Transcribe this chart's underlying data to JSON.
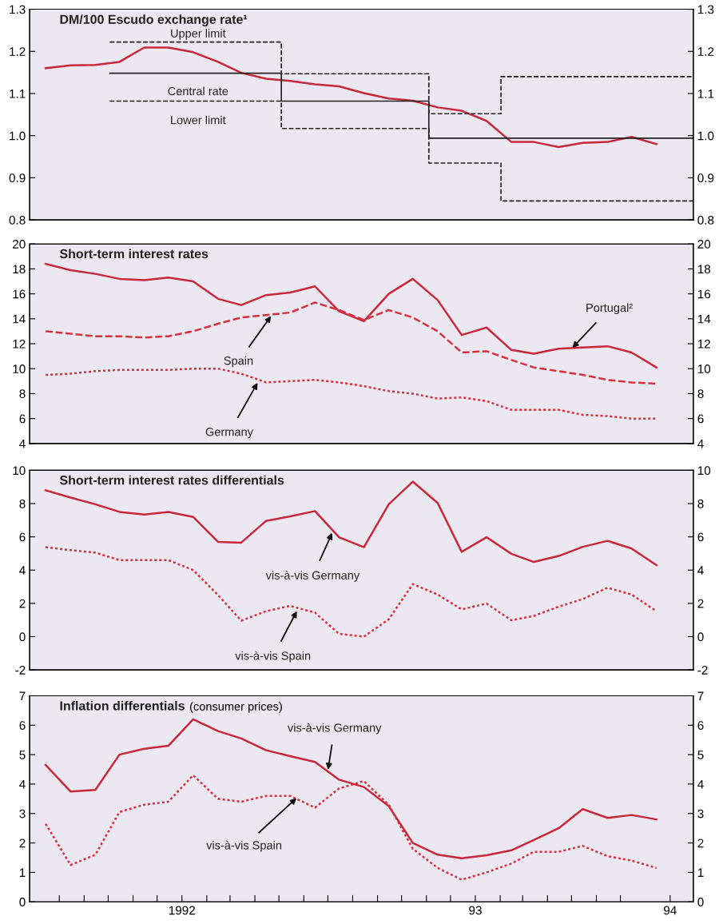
{
  "chart_data": [
    {
      "type": "line",
      "title": "DM/100 Escudo exchange rate¹",
      "xlim": [
        "1991-06-25",
        "1993-09-30"
      ],
      "ylim": [
        0.8,
        1.3
      ],
      "yticks": [
        0.8,
        0.9,
        {
          "value": 1,
          "label": "1.0"
        },
        1.1,
        1.2,
        1.3
      ],
      "y2lim": [
        0.8,
        1.3
      ],
      "y2ticks": [
        0.8,
        0.9,
        {
          "value": 1,
          "label": "1.0"
        },
        1.1,
        1.2,
        1.3
      ],
      "tick_labels": "y",
      "x": [
        "1991-07-15",
        "1991-08-15",
        "1991-09-15",
        "1991-10-15",
        "1991-11-15",
        "1991-12-15",
        "1992-01-15",
        "1992-02-15",
        "1992-03-15",
        "1992-04-15",
        "1992-05-15",
        "1992-06-15",
        "1992-07-15",
        "1992-08-15",
        "1992-09-15",
        "1992-10-15",
        "1992-11-15",
        "1992-12-15",
        "1993-01-15",
        "1993-02-15",
        "1993-03-15",
        "1993-04-15",
        "1993-05-15",
        "1993-06-15",
        "1993-07-15",
        "1993-08-15"
      ],
      "series": [
        {
          "type": "line",
          "color": "#c8283a",
          "line_style": "solid",
          "values": [
            1.16,
            1.167,
            1.168,
            1.175,
            1.209,
            1.209,
            1.198,
            1.175,
            1.149,
            1.135,
            1.13,
            1.122,
            1.117,
            1.101,
            1.088,
            1.083,
            1.067,
            1.059,
            1.035,
            0.985,
            0.985,
            0.973,
            0.983,
            0.985,
            0.997,
            0.98
          ]
        },
        {
          "type": "step",
          "color": "#222222",
          "line_style": "dashed",
          "x": [
            "1991-10-03",
            "1992-05-04",
            "1992-11-04",
            "1993-02-02",
            "1993-09-30"
          ],
          "values": [
            1.222,
            1.147,
            1.052,
            1.14,
            1.14
          ]
        },
        {
          "type": "step",
          "color": "#222222",
          "line_style": "solid",
          "x": [
            "1991-10-03",
            "1992-05-04",
            "1992-11-04",
            "1993-09-30"
          ],
          "values": [
            1.148,
            1.082,
            0.994,
            0.994
          ]
        },
        {
          "type": "step",
          "color": "#222222",
          "line_style": "dashed",
          "x": [
            "1991-10-03",
            "1992-05-04",
            "1992-11-04",
            "1993-02-02",
            "1993-09-30"
          ],
          "values": [
            1.082,
            1.017,
            0.935,
            0.845,
            0.845
          ]
        }
      ],
      "annotations": [
        {
          "text": "Upper limit",
          "x": "1992-01-21",
          "y": 1.222
        },
        {
          "text": "Central rate",
          "x": "1992-01-21",
          "y": 1.148
        },
        {
          "text": "Lower limit",
          "x": "1992-01-21",
          "y": 1.082
        }
      ]
    },
    {
      "type": "line",
      "title": "Short-term interest rates",
      "xlim": [
        "1991-06-25",
        "1993-09-30"
      ],
      "ylim": [
        4,
        20
      ],
      "yticks": [
        4,
        6,
        8,
        10,
        12,
        14,
        16,
        18,
        20
      ],
      "y2lim": [
        4,
        20
      ],
      "y2ticks": [
        4,
        6,
        8,
        10,
        12,
        14,
        16,
        18,
        20
      ],
      "tick_labels": "y",
      "x": [
        "1991-07-15",
        "1991-08-15",
        "1991-09-15",
        "1991-10-15",
        "1991-11-15",
        "1991-12-15",
        "1992-01-15",
        "1992-02-15",
        "1992-03-15",
        "1992-04-15",
        "1992-05-15",
        "1992-06-15",
        "1992-07-15",
        "1992-08-15",
        "1992-09-15",
        "1992-10-15",
        "1992-11-15",
        "1992-12-15",
        "1993-01-15",
        "1993-02-15",
        "1993-03-15",
        "1993-04-15",
        "1993-05-15",
        "1993-06-15",
        "1993-07-15",
        "1993-08-15"
      ],
      "series": [
        {
          "type": "line",
          "color": "#c8283a",
          "line_style": "solid",
          "values": [
            18.4,
            17.9,
            17.6,
            17.2,
            17.1,
            17.3,
            17.0,
            15.6,
            15.1,
            15.9,
            16.1,
            16.6,
            14.6,
            13.8,
            16.0,
            17.2,
            15.5,
            12.7,
            13.3,
            11.5,
            11.2,
            11.6,
            11.7,
            11.8,
            11.3,
            10.1
          ]
        },
        {
          "type": "line",
          "color": "#d8303e",
          "line_style": "dashed",
          "values": [
            13.0,
            12.8,
            12.6,
            12.6,
            12.5,
            12.6,
            13.0,
            13.6,
            14.1,
            14.3,
            14.5,
            15.3,
            14.7,
            13.9,
            14.7,
            14.1,
            13.0,
            11.3,
            11.4,
            10.7,
            10.1,
            9.8,
            9.5,
            9.1,
            8.9,
            8.8
          ]
        },
        {
          "type": "line",
          "color": "#d8303e",
          "line_style": "dotted",
          "values": [
            9.5,
            9.6,
            9.8,
            9.9,
            9.9,
            9.9,
            10.0,
            10.0,
            9.6,
            8.9,
            9.0,
            9.1,
            8.9,
            8.6,
            8.2,
            8.0,
            7.6,
            7.7,
            7.4,
            6.7,
            6.7,
            6.7,
            6.3,
            6.2,
            6.0,
            6.0
          ]
        }
      ],
      "annotations": [
        {
          "text": "Spain",
          "x": "1992-04-22",
          "y": 14.3
        },
        {
          "text": "Germany",
          "x": "1992-04-05",
          "y": 8.95
        },
        {
          "text": "Portugal²",
          "x": "1993-05-01",
          "y": 11.6
        }
      ]
    },
    {
      "type": "line",
      "title": "Short-term interest rates differentials",
      "xlim": [
        "1991-06-25",
        "1993-09-30"
      ],
      "ylim": [
        -2,
        10
      ],
      "yticks": [
        {
          "value": -2,
          "label": "-2"
        },
        0,
        2,
        4,
        6,
        8,
        10
      ],
      "y2lim": [
        -2,
        10
      ],
      "y2ticks": [
        {
          "value": -2,
          "label": "-2"
        },
        0,
        2,
        4,
        6,
        8,
        10
      ],
      "tick_labels": "y",
      "x": [
        "1991-07-15",
        "1991-08-15",
        "1991-09-15",
        "1991-10-15",
        "1991-11-15",
        "1991-12-15",
        "1992-01-15",
        "1992-02-15",
        "1992-03-15",
        "1992-04-15",
        "1992-05-15",
        "1992-06-15",
        "1992-07-15",
        "1992-08-15",
        "1992-09-15",
        "1992-10-15",
        "1992-11-15",
        "1992-12-15",
        "1993-01-15",
        "1993-02-15",
        "1993-03-15",
        "1993-04-15",
        "1993-05-15",
        "1993-06-15",
        "1993-07-15",
        "1993-08-15"
      ],
      "series": [
        {
          "type": "line",
          "color": "#c8283a",
          "line_style": "solid",
          "values": [
            8.8,
            8.36,
            7.96,
            7.5,
            7.34,
            7.5,
            7.2,
            5.7,
            5.65,
            6.96,
            7.23,
            7.55,
            5.98,
            5.38,
            7.96,
            9.32,
            8.04,
            5.1,
            5.98,
            4.98,
            4.49,
            4.85,
            5.4,
            5.76,
            5.3,
            4.3
          ]
        },
        {
          "type": "line",
          "color": "#d8303e",
          "line_style": "dotted",
          "values": [
            5.38,
            5.2,
            5.05,
            4.6,
            4.6,
            4.6,
            4.0,
            2.5,
            0.96,
            1.53,
            1.85,
            1.44,
            0.17,
            0.0,
            1.04,
            3.16,
            2.53,
            1.64,
            1.99,
            0.98,
            1.25,
            1.8,
            2.26,
            2.94,
            2.53,
            1.53
          ]
        }
      ],
      "annotations": [
        {
          "text": "vis-à-vis Germany",
          "x": "1992-07-07",
          "y": 6.3
        },
        {
          "text": "vis-à-vis Spain",
          "x": "1992-05-24",
          "y": 1.6
        }
      ]
    },
    {
      "type": "line",
      "title": "Inflation differentials",
      "subtitle": "(consumer prices)",
      "xlim": [
        "1991-06-25",
        "1993-09-30"
      ],
      "ylim": [
        0,
        7
      ],
      "yticks": [
        0,
        1,
        2,
        3,
        4,
        5,
        6,
        7
      ],
      "y2lim": [
        0,
        7
      ],
      "y2ticks": [
        0,
        1,
        2,
        3,
        4,
        5,
        6,
        7
      ],
      "xticks": [
        {
          "value": "1991-08-01",
          "label": null
        },
        {
          "value": "1991-09-01",
          "label": null
        },
        {
          "value": "1991-10-01",
          "label": null
        },
        {
          "value": "1991-11-01",
          "label": null
        },
        {
          "value": "1991-12-01",
          "label": null
        },
        {
          "value": "1992-01-01",
          "label": "1992"
        },
        {
          "value": "1992-02-01",
          "label": null
        },
        {
          "value": "1992-03-01",
          "label": null
        },
        {
          "value": "1992-04-01",
          "label": null
        },
        {
          "value": "1992-05-01",
          "label": null
        },
        {
          "value": "1992-06-01",
          "label": null
        },
        {
          "value": "1992-07-01",
          "label": null
        },
        {
          "value": "1992-08-01",
          "label": null
        },
        {
          "value": "1992-09-01",
          "label": null
        },
        {
          "value": "1992-10-01",
          "label": null
        },
        {
          "value": "1992-11-01",
          "label": null
        },
        {
          "value": "1992-12-01",
          "label": null
        },
        {
          "value": "1993-01-01",
          "label": "93"
        },
        {
          "value": "1993-02-01",
          "label": null
        },
        {
          "value": "1993-03-01",
          "label": null
        },
        {
          "value": "1993-04-01",
          "label": null
        },
        {
          "value": "1993-05-01",
          "label": null
        },
        {
          "value": "1993-06-01",
          "label": null
        },
        {
          "value": "1993-07-01",
          "label": null
        },
        {
          "value": "1993-09-01",
          "label": "94"
        }
      ],
      "x": [
        "1991-07-15",
        "1991-08-15",
        "1991-09-15",
        "1991-10-15",
        "1991-11-15",
        "1991-12-15",
        "1992-01-15",
        "1992-02-15",
        "1992-03-15",
        "1992-04-15",
        "1992-05-15",
        "1992-06-15",
        "1992-07-15",
        "1992-08-15",
        "1992-09-15",
        "1992-10-15",
        "1992-11-15",
        "1992-12-15",
        "1993-01-15",
        "1993-02-15",
        "1993-03-15",
        "1993-04-15",
        "1993-05-15",
        "1993-06-15",
        "1993-07-15",
        "1993-08-15"
      ],
      "series": [
        {
          "type": "line",
          "color": "#c8283a",
          "line_style": "solid",
          "values": [
            4.65,
            3.75,
            3.8,
            5.0,
            5.2,
            5.3,
            6.2,
            5.8,
            5.55,
            5.15,
            4.95,
            4.75,
            4.15,
            3.9,
            3.25,
            2.0,
            1.6,
            1.48,
            1.58,
            1.75,
            2.1,
            2.5,
            3.15,
            2.85,
            2.95,
            2.8
          ]
        },
        {
          "type": "line",
          "color": "#d8303e",
          "line_style": "dotted",
          "values": [
            2.65,
            1.25,
            1.6,
            3.05,
            3.3,
            3.4,
            4.3,
            3.5,
            3.4,
            3.6,
            3.6,
            3.2,
            3.85,
            4.1,
            3.3,
            1.8,
            1.15,
            0.75,
            1.0,
            1.3,
            1.7,
            1.7,
            1.9,
            1.55,
            1.4,
            1.15
          ]
        }
      ],
      "annotations": [
        {
          "text": "vis-à-vis Germany",
          "x": "1992-07-01",
          "y": 4.45
        },
        {
          "text": "vis-à-vis Spain",
          "x": "1992-05-24",
          "y": 3.55
        }
      ]
    }
  ]
}
